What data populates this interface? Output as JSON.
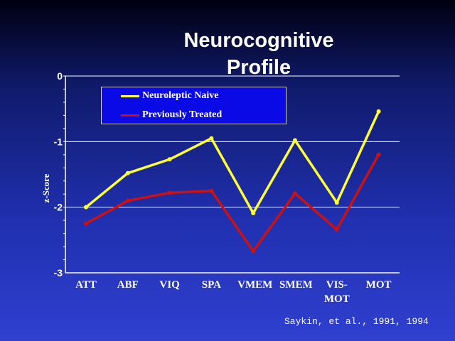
{
  "chart_data": {
    "type": "line",
    "title": "Neurocognitive Profile",
    "y_label": "z-Score",
    "categories": [
      "ATT",
      "ABF",
      "VIQ",
      "SPA",
      "VMEM",
      "SMEM",
      "VIS-MOT",
      "MOT"
    ],
    "series": [
      {
        "name": "Neuroleptic Naive",
        "color": "#ffff33",
        "values": [
          -2.0,
          -1.48,
          -1.27,
          -0.95,
          -2.09,
          -0.98,
          -1.93,
          -0.54
        ]
      },
      {
        "name": "Previously Treated",
        "color": "#cc1111",
        "values": [
          -2.25,
          -1.9,
          -1.78,
          -1.75,
          -2.67,
          -1.79,
          -2.34,
          -1.2
        ]
      }
    ],
    "ylim": [
      -3,
      0
    ],
    "yticks": [
      0,
      -1,
      -2,
      -3
    ],
    "grid": true,
    "source": "Saykin, et al., 1991, 1994"
  }
}
